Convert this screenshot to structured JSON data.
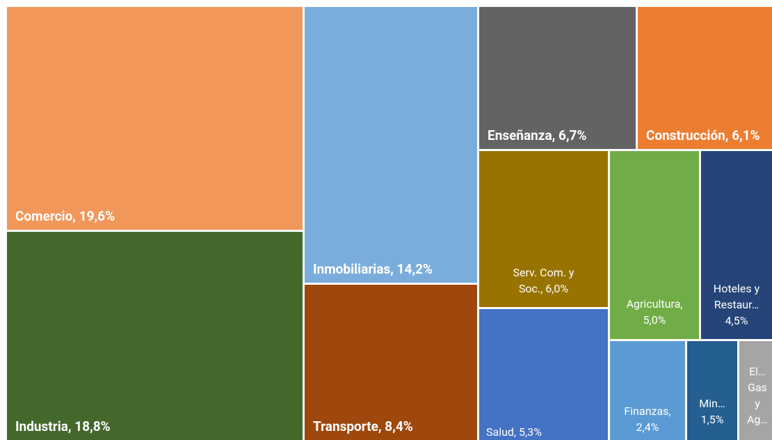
{
  "chart_data": {
    "type": "treemap",
    "labels": [
      [
        "Comercio, 19,6%"
      ],
      [
        "Industria, 18,8%"
      ],
      [
        "Inmobiliarias, 14,2%"
      ],
      [
        "Transporte, 8,4%"
      ],
      [
        "Enseñanza, 6,7%"
      ],
      [
        "Construcción, 6,1%"
      ],
      [
        "Serv. Com. y",
        "Soc., 6,0%"
      ],
      [
        "Salud, 5,3%"
      ],
      [
        "Agricultura,",
        "5,0%"
      ],
      [
        "Hoteles y",
        "Restaur…",
        "4,5%"
      ],
      [
        "Finanzas,",
        "2,4%"
      ],
      [
        "Min…",
        "1,5%"
      ],
      [
        "El…",
        "Gas",
        "y",
        "Ag…"
      ]
    ],
    "values": [
      19.6,
      18.8,
      14.2,
      8.4,
      6.7,
      6.1,
      6.0,
      5.3,
      5.0,
      4.5,
      2.4,
      1.5,
      1.0
    ],
    "colors": [
      "#f2975a",
      "#44682c",
      "#7aaddc",
      "#9e480e",
      "#636363",
      "#ed7d31",
      "#997300",
      "#4472c4",
      "#70ad47",
      "#264478",
      "#5b9bd5",
      "#255e91",
      "#a5a5a5"
    ]
  }
}
